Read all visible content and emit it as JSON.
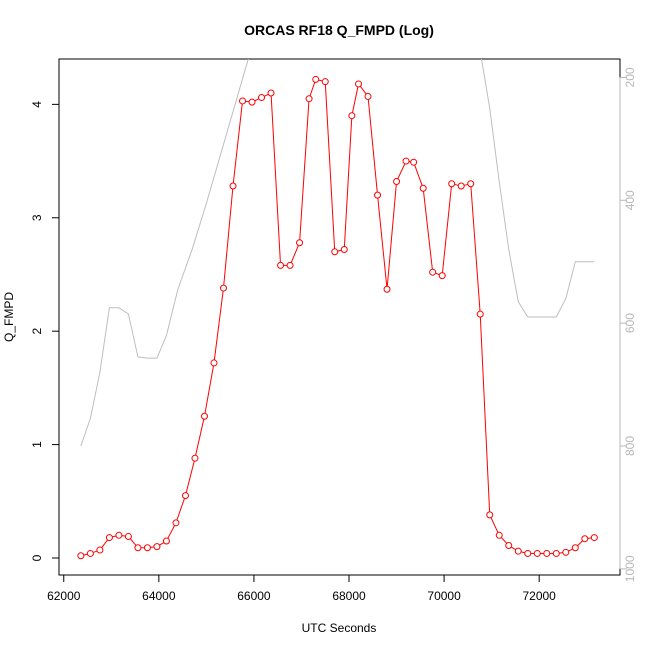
{
  "chart_data": {
    "type": "line",
    "title": "ORCAS RF18 Q_FMPD (Log)",
    "xlabel": "UTC Seconds",
    "ylabel": "Q_FMPD",
    "xlim": [
      61900,
      73700
    ],
    "ylim": [
      -0.15,
      4.4
    ],
    "x_ticks": [
      62000,
      64000,
      66000,
      68000,
      70000,
      72000
    ],
    "y_ticks": [
      0,
      1,
      2,
      3,
      4
    ],
    "y2_lim": [
      1010,
      170
    ],
    "y2_ticks": [
      200,
      400,
      600,
      800,
      1000
    ],
    "grid": false,
    "colors": {
      "series": "#ff0000",
      "secondary": "#bebebe",
      "axis": "#000000",
      "secondary_axis": "#b8b8b8"
    },
    "series": [
      {
        "marker": "open-circle",
        "color": "#ff0000",
        "x": [
          62360,
          62560,
          62760,
          62960,
          63160,
          63360,
          63560,
          63760,
          63960,
          64160,
          64360,
          64560,
          64760,
          64960,
          65160,
          65360,
          65560,
          65760,
          65960,
          66160,
          66360,
          66560,
          66760,
          66960,
          67160,
          67300,
          67500,
          67700,
          67900,
          68060,
          68200,
          68400,
          68600,
          68800,
          69000,
          69200,
          69360,
          69560,
          69760,
          69960,
          70160,
          70360,
          70560,
          70760,
          70960,
          71160,
          71360,
          71560,
          71760,
          71960,
          72160,
          72360,
          72560,
          72760,
          72960,
          73160
        ],
        "y": [
          0.02,
          0.04,
          0.07,
          0.18,
          0.2,
          0.19,
          0.09,
          0.09,
          0.1,
          0.15,
          0.31,
          0.55,
          0.88,
          1.25,
          1.72,
          2.38,
          3.28,
          4.03,
          4.02,
          4.06,
          4.1,
          2.58,
          2.58,
          2.78,
          4.05,
          4.22,
          4.2,
          2.7,
          2.72,
          3.9,
          4.18,
          4.07,
          3.2,
          2.37,
          3.32,
          3.5,
          3.49,
          3.26,
          2.52,
          2.49,
          3.3,
          3.28,
          3.3,
          2.15,
          0.38,
          0.2,
          0.11,
          0.06,
          0.04,
          0.04,
          0.04,
          0.04,
          0.05,
          0.09,
          0.17,
          0.18
        ]
      },
      {
        "axis": "right",
        "color": "#bebebe",
        "x": [
          62360,
          62560,
          62760,
          62960,
          63160,
          63360,
          63560,
          63760,
          63960,
          64160,
          64400,
          64700,
          65000,
          65300,
          65600,
          65900,
          66200,
          66500,
          66800,
          67100,
          67400,
          67700,
          68000,
          68300,
          68600,
          68900,
          69200,
          69500,
          69800,
          70100,
          70400,
          70700,
          70960,
          71160,
          71360,
          71560,
          71760,
          71960,
          72160,
          72360,
          72560,
          72760,
          72960,
          73160
        ],
        "y": [
          800,
          755,
          680,
          575,
          575,
          585,
          655,
          657,
          657,
          620,
          545,
          480,
          405,
          325,
          245,
          165,
          130,
          150,
          150,
          150,
          120,
          115,
          120,
          120,
          125,
          125,
          130,
          125,
          125,
          130,
          125,
          130,
          250,
          370,
          480,
          565,
          590,
          590,
          590,
          590,
          560,
          500,
          500,
          500
        ]
      }
    ]
  }
}
